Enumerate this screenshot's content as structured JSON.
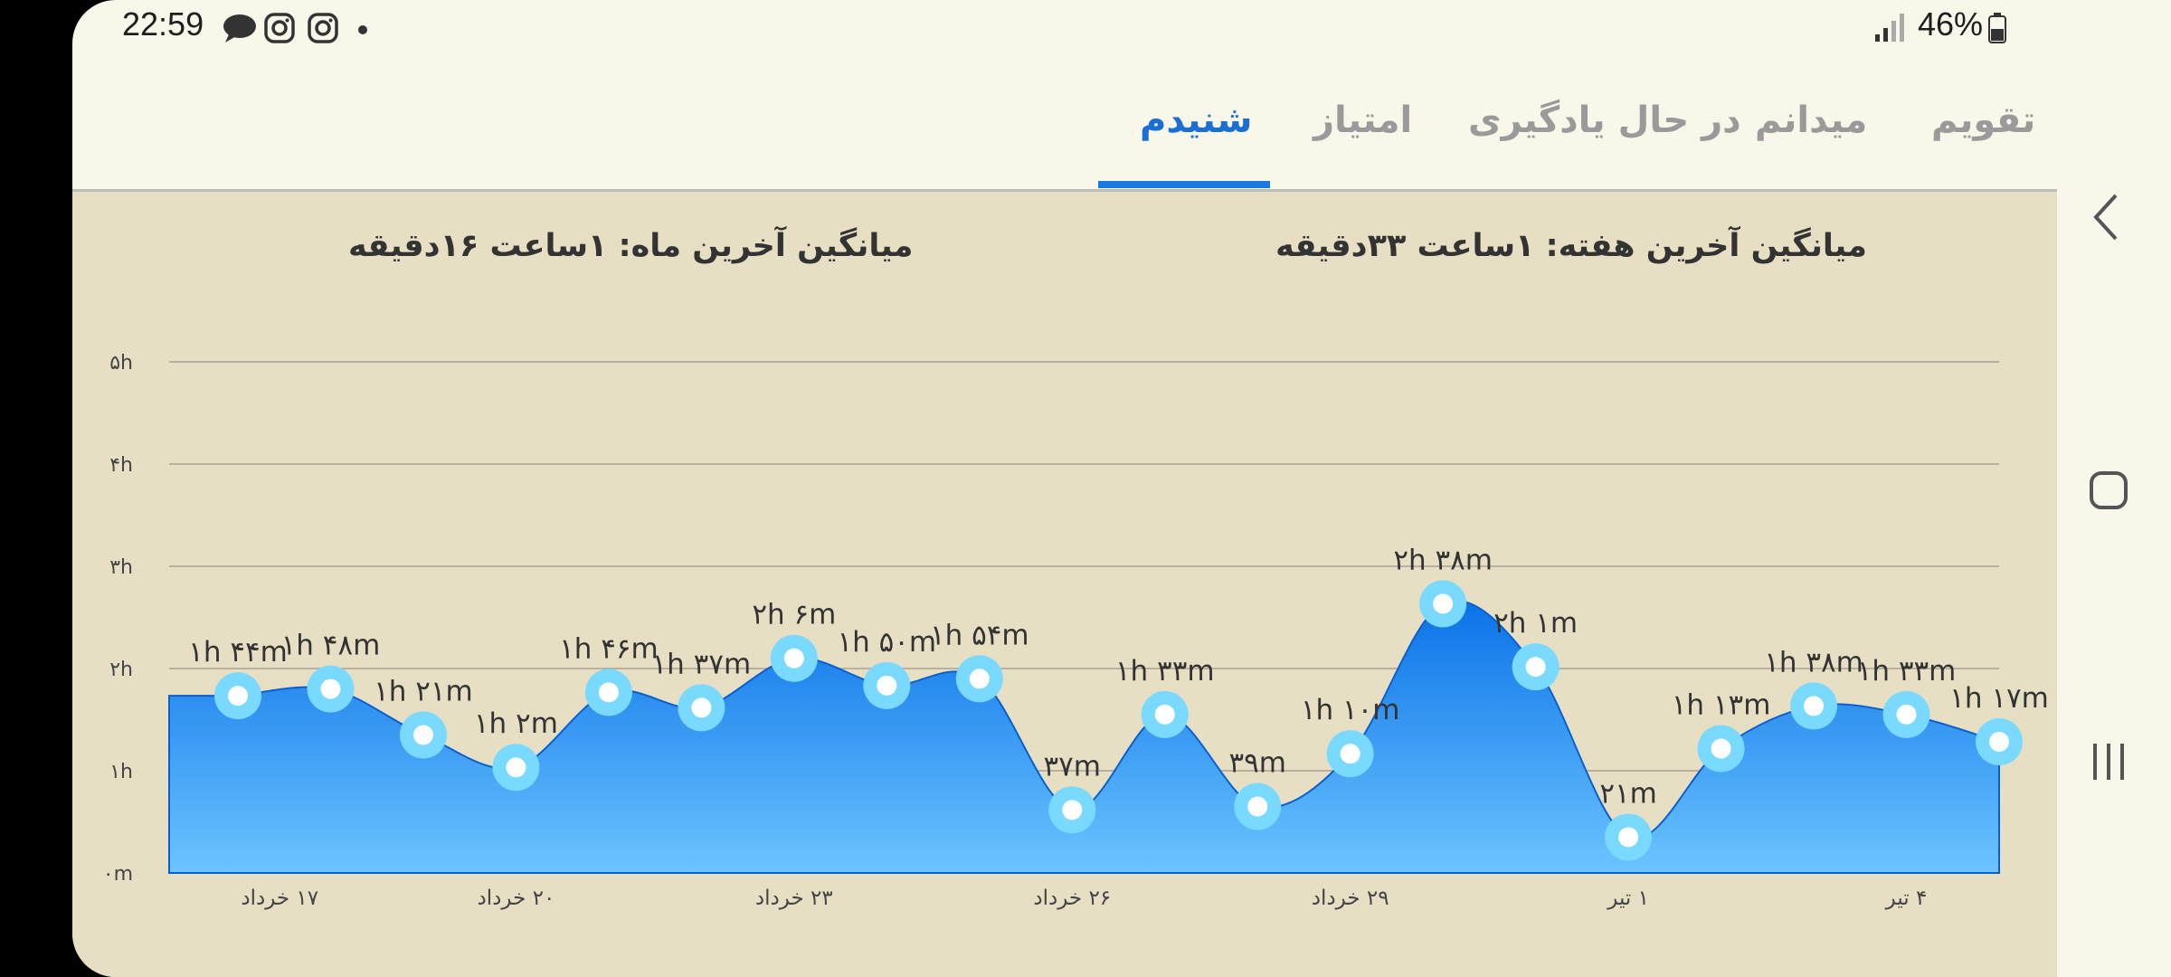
{
  "status_bar": {
    "time": "22:59",
    "notification_icons": [
      "message-icon",
      "instagram-icon",
      "instagram-icon",
      "dot-icon"
    ],
    "battery": "46%"
  },
  "tabs": [
    {
      "label": "تقویم",
      "active": false
    },
    {
      "label": "میدانم",
      "active": false
    },
    {
      "label": "در حال یادگیری",
      "active": false
    },
    {
      "label": "امتیاز",
      "active": false
    },
    {
      "label": "شنیدم",
      "active": true
    }
  ],
  "averages": {
    "week": "میانگین آخرین هفته: ۱ساعت  ۳۳دقیقه",
    "month": "میانگین آخرین ماه: ۱ساعت  ۱۶دقیقه"
  },
  "colors": {
    "accent": "#1a7ae0",
    "area_top": "#0a72e8",
    "area_bottom": "#6cc4ff",
    "marker": "#79d9ff"
  },
  "chart_data": {
    "type": "area",
    "ylabel_ticks": [
      "۰m",
      "۱h",
      "۲h",
      "۳h",
      "۴h",
      "۵h"
    ],
    "ylim": [
      0,
      300
    ],
    "y_unit": "minutes",
    "grid": true,
    "x_tick_labels": [
      "۱۷ خرداد",
      "۲۰ خرداد",
      "۲۳ خرداد",
      "۲۶ خرداد",
      "۲۹ خرداد",
      "۱ تیر",
      "۴ تیر"
    ],
    "x_tick_indices": [
      0.5,
      3,
      6,
      9,
      12,
      15,
      18
    ],
    "values": [
      104,
      108,
      81,
      62,
      106,
      97,
      126,
      110,
      114,
      37,
      93,
      39,
      70,
      158,
      121,
      21,
      73,
      98,
      93,
      77
    ],
    "labels": [
      "۱h ۴۴m",
      "۱h ۴۸m",
      "۱h ۲۱m",
      "۱h ۲m",
      "۱h ۴۶m",
      "۱h ۳۷m",
      "۲h ۶m",
      "۱h ۵۰m",
      "۱h ۵۴m",
      "۳۷m",
      "۱h ۳۳m",
      "۳۹m",
      "۱h ۱۰m",
      "۲h ۳۸m",
      "۲h ۱m",
      "۲۱m",
      "۱h ۱۳m",
      "۱h ۳۸m",
      "۱h ۳۳m",
      "۱h ۱۷m"
    ]
  }
}
